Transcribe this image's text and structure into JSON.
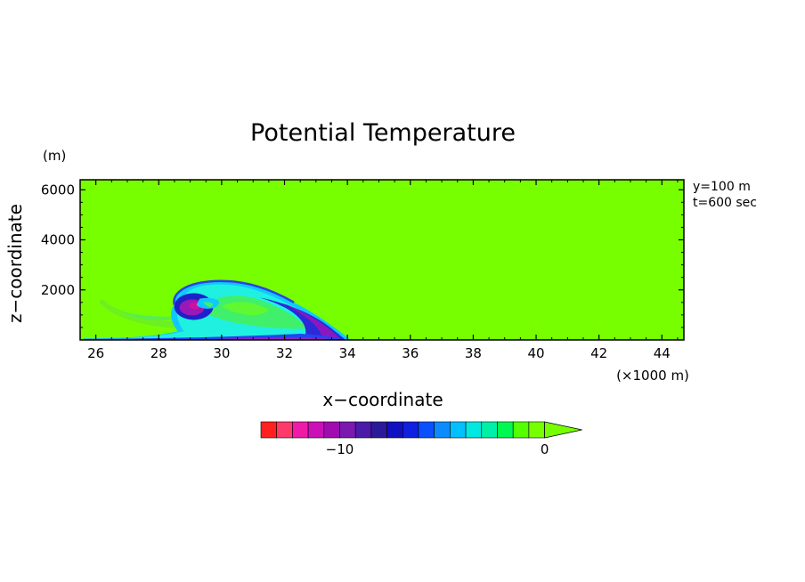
{
  "chart_data": {
    "type": "heatmap",
    "title": "Potential Temperature",
    "xlabel": "x−coordinate",
    "ylabel": "z−coordinate",
    "x_unit": "(×1000 m)",
    "y_unit": "(m)",
    "annotations": [
      "y=100 m",
      "t=600 sec"
    ],
    "xlim": [
      25.5,
      44.7
    ],
    "ylim": [
      0,
      6400
    ],
    "x_ticks": [
      26,
      28,
      30,
      32,
      34,
      36,
      38,
      40,
      42,
      44
    ],
    "y_ticks": [
      2000,
      4000,
      6000
    ],
    "background_color": "#77ff00",
    "features": [
      {
        "name": "cold-pool-front",
        "x_front": 34.0,
        "z_head_top": 2300,
        "x_head": 29.0
      },
      {
        "name": "rotor",
        "x": 29.0,
        "z": 1300
      }
    ],
    "colorbar": {
      "orientation": "horizontal",
      "extend": "max",
      "colors": [
        "#ff2020",
        "#ff3a6a",
        "#f01aa8",
        "#cc10b8",
        "#a00cb0",
        "#7a18b0",
        "#4a1aa8",
        "#2a1a9a",
        "#1010c0",
        "#1020e0",
        "#0a50ff",
        "#0a8cff",
        "#00c0ff",
        "#00e8e0",
        "#00f0a8",
        "#00f850",
        "#55ff00",
        "#77ff00"
      ],
      "tick_labels": [
        "−10",
        "0"
      ]
    }
  }
}
